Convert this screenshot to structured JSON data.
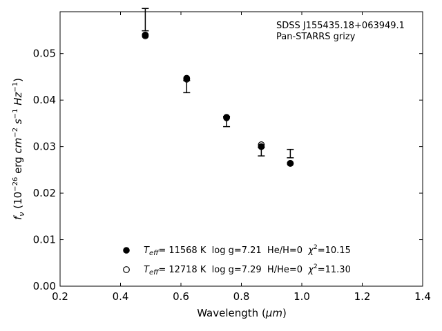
{
  "chart_data": {
    "type": "scatter",
    "xlabel_main": "Wavelength (",
    "xlabel_unit": "μm",
    "xlabel_close": ")",
    "ylabel_f": "f",
    "ylabel_sub": "ν",
    "ylabel_open": " (10",
    "ylabel_exp1": "−26",
    "ylabel_erg": " erg ",
    "ylabel_cm": "cm",
    "ylabel_exp2": "−2",
    "ylabel_s": " s",
    "ylabel_exp3": "−1",
    "ylabel_hz": " Hz",
    "ylabel_exp4": "−1",
    "ylabel_close": ")",
    "xlim": [
      0.2,
      1.4
    ],
    "ylim": [
      0.0,
      0.059
    ],
    "xticks": [
      0.2,
      0.4,
      0.6,
      0.8,
      1.0,
      1.2,
      1.4
    ],
    "xtick_labels": [
      "0.2",
      "0.4",
      "0.6",
      "0.8",
      "1.0",
      "1.2",
      "1.4"
    ],
    "yticks": [
      0.0,
      0.01,
      0.02,
      0.03,
      0.04,
      0.05
    ],
    "ytick_labels": [
      "0.00",
      "0.01",
      "0.02",
      "0.03",
      "0.04",
      "0.05"
    ],
    "grid": false,
    "annotation": [
      "SDSS J155435.18+063949.1",
      "Pan-STARRS grizy"
    ],
    "observed": {
      "x": [
        0.482,
        0.619,
        0.751,
        0.866,
        0.962
      ],
      "y": [
        0.0573,
        0.0429,
        0.0354,
        0.0289,
        0.0285
      ],
      "yerr": [
        0.0024,
        0.0013,
        0.0011,
        0.0009,
        0.0009
      ]
    },
    "series": [
      {
        "label_te": "T",
        "label_sub": "eff",
        "label_mid": "= 11568 K  log g=7.21  He/H=0  ",
        "label_chi": "χ",
        "label_chi_exp": "2",
        "label_end": "=10.15",
        "marker": "filled",
        "x": [
          0.482,
          0.619,
          0.751,
          0.866,
          0.962
        ],
        "y": [
          0.054,
          0.0447,
          0.0363,
          0.03,
          0.0264
        ]
      },
      {
        "label_te": "T",
        "label_sub": "eff",
        "label_mid": "= 12718 K  log g=7.29  H/He=0  ",
        "label_chi": "χ",
        "label_chi_exp": "2",
        "label_end": "=11.30",
        "marker": "open",
        "x": [
          0.482,
          0.619,
          0.751,
          0.866,
          0.962
        ],
        "y": [
          0.0538,
          0.0445,
          0.0362,
          0.0304,
          0.0264
        ]
      }
    ],
    "legend_position": "bottom-center",
    "colors": {
      "axis": "#000000",
      "marker": "#000000",
      "background": "#ffffff"
    }
  }
}
